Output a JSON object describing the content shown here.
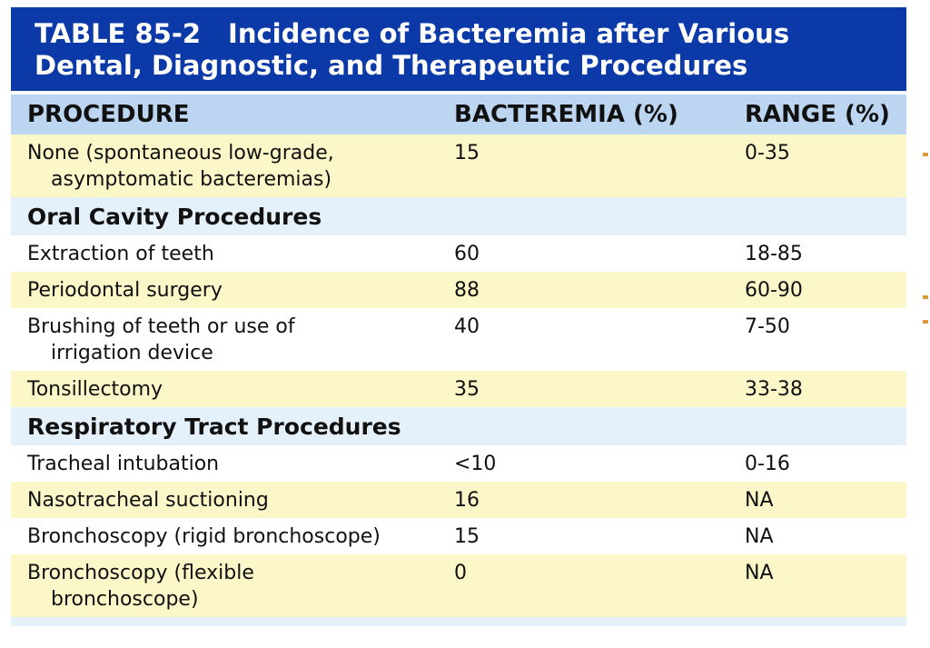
{
  "title": {
    "number": "TABLE 85-2",
    "text": "Incidence of Bacteremia after Various Dental, Diagnostic, and Therapeutic Procedures"
  },
  "headers": [
    "PROCEDURE",
    "BACTEREMIA (%)",
    "RANGE (%)"
  ],
  "rows": [
    {
      "procedure_l1": "None (spontaneous low-grade,",
      "procedure_l2": "asymptomatic bacteremias)",
      "bacteremia": "15",
      "range": "0-35"
    },
    {
      "section": "Oral Cavity Procedures"
    },
    {
      "procedure_l1": "Extraction of teeth",
      "bacteremia": "60",
      "range": "18-85"
    },
    {
      "procedure_l1": "Periodontal surgery",
      "bacteremia": "88",
      "range": "60-90"
    },
    {
      "procedure_l1": "Brushing of teeth or use of",
      "procedure_l2": "irrigation device",
      "bacteremia": "40",
      "range": "7-50"
    },
    {
      "procedure_l1": "Tonsillectomy",
      "bacteremia": "35",
      "range": "33-38"
    },
    {
      "section": "Respiratory Tract Procedures"
    },
    {
      "procedure_l1": "Tracheal intubation",
      "bacteremia": "<10",
      "range": "0-16"
    },
    {
      "procedure_l1": "Nasotracheal suctioning",
      "bacteremia": "16",
      "range": "NA"
    },
    {
      "procedure_l1": "Bronchoscopy (rigid bronchoscope)",
      "bacteremia": "15",
      "range": "NA"
    },
    {
      "procedure_l1": "Bronchoscopy (flexible",
      "procedure_l2": "bronchoscope)",
      "bacteremia": "0",
      "range": "NA"
    }
  ],
  "colors": {
    "title_bg": "#0b3aa8",
    "header_bg": "#bcd6f1",
    "row_yellow": "#fbf7c8",
    "section_bg": "#e4f1fb"
  }
}
